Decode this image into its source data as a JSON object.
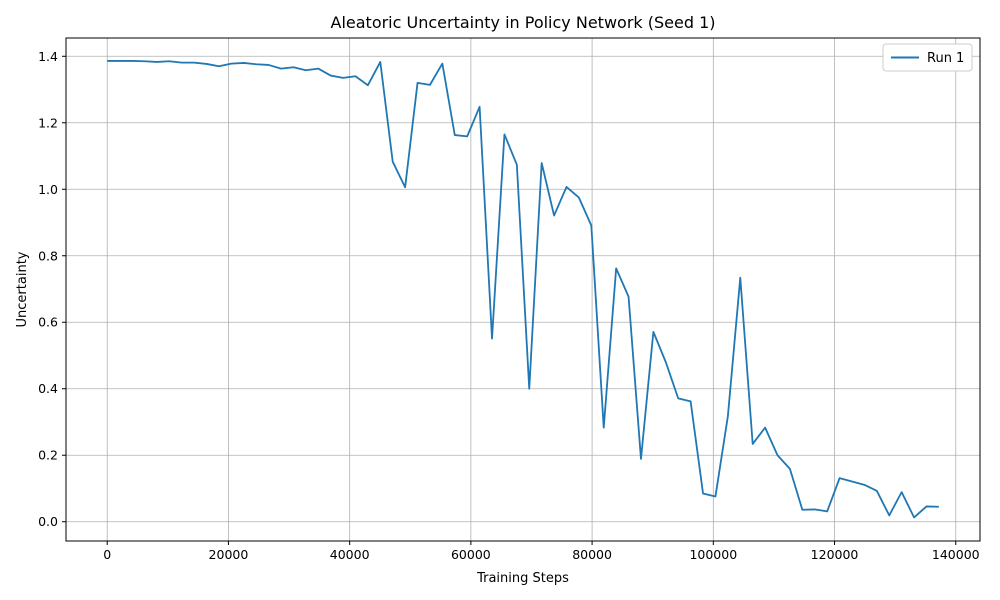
{
  "chart_data": {
    "type": "line",
    "title": "Aleatoric Uncertainty in Policy Network (Seed 1)",
    "xlabel": "Training Steps",
    "ylabel": "Uncertainty",
    "xlim": [
      -6800,
      144000
    ],
    "ylim": [
      -0.058,
      1.455
    ],
    "xticks": [
      0,
      20000,
      40000,
      60000,
      80000,
      100000,
      120000,
      140000
    ],
    "yticks": [
      0.0,
      0.2,
      0.4,
      0.6,
      0.8,
      1.0,
      1.2,
      1.4
    ],
    "xtick_labels": [
      "0",
      "20000",
      "40000",
      "60000",
      "80000",
      "100000",
      "120000",
      "140000"
    ],
    "ytick_labels": [
      "0.0",
      "0.2",
      "0.4",
      "0.6",
      "0.8",
      "1.0",
      "1.2",
      "1.4"
    ],
    "grid": true,
    "legend_position": "top-right",
    "colors": {
      "series": "#1f77b4",
      "grid": "#b0b0b0"
    },
    "series": [
      {
        "name": "Run 1",
        "x": [
          0,
          2048,
          4096,
          6144,
          8192,
          10240,
          12288,
          14336,
          16384,
          18432,
          20480,
          22528,
          24576,
          26624,
          28672,
          30720,
          32768,
          34816,
          36864,
          38912,
          40960,
          43008,
          45056,
          47104,
          49152,
          51200,
          53248,
          55296,
          57344,
          59392,
          61440,
          63488,
          65536,
          67584,
          69632,
          71680,
          73728,
          75776,
          77824,
          79872,
          81920,
          83968,
          86016,
          88064,
          90112,
          92160,
          94208,
          96256,
          98304,
          100352,
          102400,
          104448,
          106496,
          108544,
          110592,
          112640,
          114688,
          116736,
          118784,
          120832,
          122880,
          124928,
          126976,
          129024,
          131072,
          133120,
          135168,
          137216
        ],
        "values": [
          1.386,
          1.386,
          1.386,
          1.385,
          1.383,
          1.385,
          1.381,
          1.381,
          1.377,
          1.37,
          1.378,
          1.38,
          1.376,
          1.374,
          1.363,
          1.367,
          1.358,
          1.363,
          1.342,
          1.335,
          1.34,
          1.313,
          1.383,
          1.083,
          1.006,
          1.32,
          1.314,
          1.378,
          1.163,
          1.159,
          1.248,
          0.551,
          1.165,
          1.074,
          0.4,
          1.079,
          0.921,
          1.007,
          0.975,
          0.891,
          0.283,
          0.762,
          0.677,
          0.189,
          0.571,
          0.48,
          0.371,
          0.362,
          0.085,
          0.076,
          0.317,
          0.734,
          0.234,
          0.283,
          0.2,
          0.159,
          0.036,
          0.037,
          0.031,
          0.131,
          0.121,
          0.111,
          0.093,
          0.019,
          0.089,
          0.013,
          0.046,
          0.045
        ]
      }
    ]
  }
}
